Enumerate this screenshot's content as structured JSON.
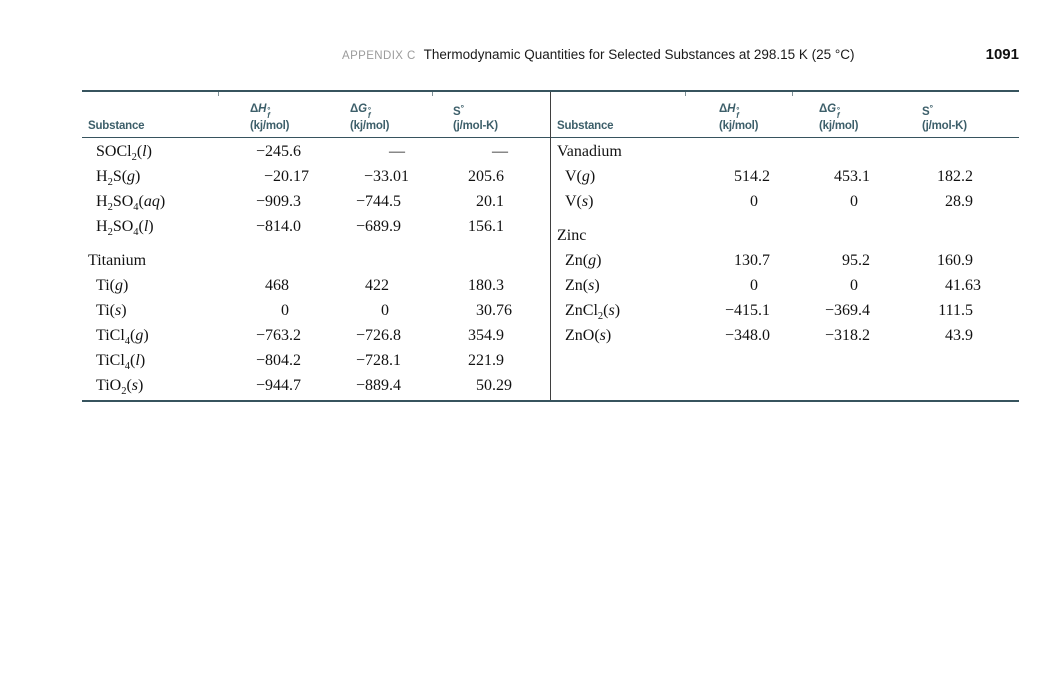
{
  "header": {
    "appendix_label": "APPENDIX C",
    "title": "Thermodynamic Quantities for Selected Substances at 298.15 K (25 °C)",
    "page_number": "1091"
  },
  "table": {
    "columns": {
      "substance_label": "Substance",
      "dH": {
        "symbol": "Δ",
        "letter": "H",
        "sup": "°",
        "sub": "f",
        "units": "(kj/mol)"
      },
      "dG": {
        "symbol": "Δ",
        "letter": "G",
        "sup": "°",
        "sub": "f",
        "units": "(kj/mol)"
      },
      "S": {
        "letter": "S",
        "sup": "°",
        "units": "(j/mol-K)"
      }
    },
    "panels": [
      {
        "groups": [
          {
            "name": "",
            "rows": [
              [
                "SOCl2(l)",
                "−245.6",
                "—",
                "—"
              ],
              [
                "H2S(g)",
                "−20.17",
                "−33.01",
                "205.6"
              ],
              [
                "H2SO4(aq)",
                "−909.3",
                "−744.5",
                "20.1"
              ],
              [
                "H2SO4(l)",
                "−814.0",
                "−689.9",
                "156.1"
              ]
            ]
          },
          {
            "name": "Titanium",
            "rows": [
              [
                "Ti(g)",
                "468",
                "422",
                "180.3"
              ],
              [
                "Ti(s)",
                "0",
                "0",
                "30.76"
              ],
              [
                "TiCl4(g)",
                "−763.2",
                "−726.8",
                "354.9"
              ],
              [
                "TiCl4(l)",
                "−804.2",
                "−728.1",
                "221.9"
              ],
              [
                "TiO2(s)",
                "−944.7",
                "−889.4",
                "50.29"
              ]
            ]
          }
        ]
      },
      {
        "groups": [
          {
            "name": "Vanadium",
            "rows": [
              [
                "V(g)",
                "514.2",
                "453.1",
                "182.2"
              ],
              [
                "V(s)",
                "0",
                "0",
                "28.9"
              ]
            ]
          },
          {
            "name": "Zinc",
            "rows": [
              [
                "Zn(g)",
                "130.7",
                "95.2",
                "160.9"
              ],
              [
                "Zn(s)",
                "0",
                "0",
                "41.63"
              ],
              [
                "ZnCl2(s)",
                "−415.1",
                "−369.4",
                "111.5"
              ],
              [
                "ZnO(s)",
                "−348.0",
                "−318.2",
                "43.9"
              ]
            ]
          }
        ]
      }
    ]
  },
  "colors": {
    "rule": "#37545e",
    "header_text": "#3d5f6a",
    "divider": "#3f3f3f",
    "appendix_label_gray": "#9b9b9b"
  }
}
